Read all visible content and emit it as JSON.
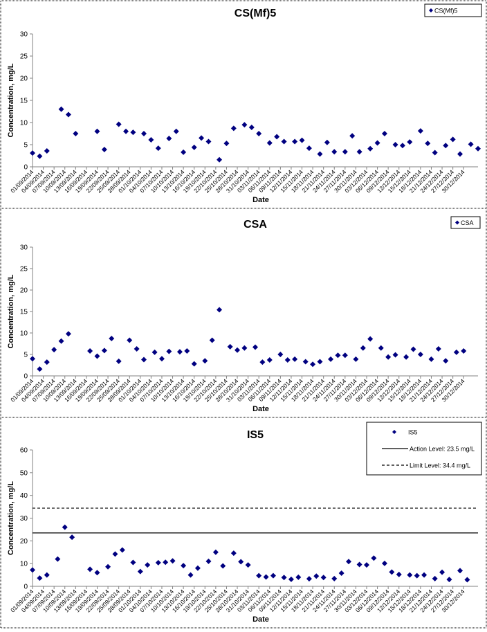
{
  "chart_data": [
    {
      "type": "scatter",
      "title": "CS(Mf)5",
      "xlabel": "Date",
      "ylabel": "Concentration, mg/L",
      "ylim": [
        0,
        30
      ],
      "yticks": [
        "0",
        "5",
        "10",
        "15",
        "20",
        "25",
        "30"
      ],
      "x_tick_labels": [
        "01/09/2014",
        "04/09/2014",
        "07/09/2014",
        "10/09/2014",
        "13/09/2014",
        "16/09/2014",
        "19/09/2014",
        "22/09/2014",
        "25/09/2014",
        "28/09/2014",
        "01/10/2014",
        "04/10/2014",
        "07/10/2014",
        "10/10/2014",
        "13/10/2014",
        "16/10/2014",
        "19/10/2014",
        "22/10/2014",
        "25/10/2014",
        "28/10/2014",
        "31/10/2014",
        "03/11/2014",
        "06/11/2014",
        "09/11/2014",
        "12/11/2014",
        "15/11/2014",
        "18/11/2014",
        "21/11/2014",
        "24/11/2014",
        "27/11/2014",
        "30/11/2014",
        "03/12/2014",
        "06/12/2014",
        "09/12/2014",
        "12/12/2014",
        "15/12/2014",
        "18/12/2014",
        "21/12/2014",
        "24/12/2014",
        "27/12/2014",
        "30/12/2014"
      ],
      "grid": false,
      "legend_position": "top-right",
      "series": [
        {
          "name": "CS(Mf)5",
          "color": "#000080",
          "marker": "diamond",
          "points": [
            {
              "x": "01/09/2014",
              "y": 3.1
            },
            {
              "x": "03/09/2014",
              "y": 2.4
            },
            {
              "x": "05/09/2014",
              "y": 3.6
            },
            {
              "x": "09/09/2014",
              "y": 13.0
            },
            {
              "x": "11/09/2014",
              "y": 11.8
            },
            {
              "x": "13/09/2014",
              "y": 7.5
            },
            {
              "x": "19/09/2014",
              "y": 8.0
            },
            {
              "x": "21/09/2014",
              "y": 3.9
            },
            {
              "x": "25/09/2014",
              "y": 9.6
            },
            {
              "x": "27/09/2014",
              "y": 8.0
            },
            {
              "x": "29/09/2014",
              "y": 7.8
            },
            {
              "x": "02/10/2014",
              "y": 7.5
            },
            {
              "x": "04/10/2014",
              "y": 6.1
            },
            {
              "x": "06/10/2014",
              "y": 4.2
            },
            {
              "x": "09/10/2014",
              "y": 6.4
            },
            {
              "x": "11/10/2014",
              "y": 8.0
            },
            {
              "x": "13/10/2014",
              "y": 3.3
            },
            {
              "x": "16/10/2014",
              "y": 4.4
            },
            {
              "x": "18/10/2014",
              "y": 6.5
            },
            {
              "x": "20/10/2014",
              "y": 5.7
            },
            {
              "x": "23/10/2014",
              "y": 1.6
            },
            {
              "x": "25/10/2014",
              "y": 5.3
            },
            {
              "x": "27/10/2014",
              "y": 8.7
            },
            {
              "x": "30/10/2014",
              "y": 9.5
            },
            {
              "x": "01/11/2014",
              "y": 8.9
            },
            {
              "x": "03/11/2014",
              "y": 7.5
            },
            {
              "x": "06/11/2014",
              "y": 5.4
            },
            {
              "x": "08/11/2014",
              "y": 6.8
            },
            {
              "x": "10/11/2014",
              "y": 5.7
            },
            {
              "x": "13/11/2014",
              "y": 5.7
            },
            {
              "x": "15/11/2014",
              "y": 6.0
            },
            {
              "x": "17/11/2014",
              "y": 4.2
            },
            {
              "x": "20/11/2014",
              "y": 2.9
            },
            {
              "x": "22/11/2014",
              "y": 5.5
            },
            {
              "x": "24/11/2014",
              "y": 3.4
            },
            {
              "x": "27/11/2014",
              "y": 3.4
            },
            {
              "x": "29/11/2014",
              "y": 7.0
            },
            {
              "x": "01/12/2014",
              "y": 3.4
            },
            {
              "x": "04/12/2014",
              "y": 4.1
            },
            {
              "x": "06/12/2014",
              "y": 5.4
            },
            {
              "x": "08/12/2014",
              "y": 7.5
            },
            {
              "x": "11/12/2014",
              "y": 5.0
            },
            {
              "x": "13/12/2014",
              "y": 4.8
            },
            {
              "x": "15/12/2014",
              "y": 5.6
            },
            {
              "x": "18/12/2014",
              "y": 8.1
            },
            {
              "x": "20/12/2014",
              "y": 5.3
            },
            {
              "x": "22/12/2014",
              "y": 3.2
            },
            {
              "x": "25/12/2014",
              "y": 4.8
            },
            {
              "x": "27/12/2014",
              "y": 6.2
            },
            {
              "x": "29/12/2014",
              "y": 2.9
            },
            {
              "x": "01/01/2015",
              "y": 5.1
            },
            {
              "x": "03/01/2015",
              "y": 4.1
            }
          ]
        }
      ]
    },
    {
      "type": "scatter",
      "title": "CSA",
      "xlabel": "Date",
      "ylabel": "Concentration, mg/L",
      "ylim": [
        0,
        30
      ],
      "yticks": [
        "0",
        "5",
        "10",
        "15",
        "20",
        "25",
        "30"
      ],
      "x_tick_labels": [
        "01/09/2014",
        "04/09/2014",
        "07/09/2014",
        "10/09/2014",
        "13/09/2014",
        "16/09/2014",
        "19/09/2014",
        "22/09/2014",
        "25/09/2014",
        "28/09/2014",
        "01/10/2014",
        "04/10/2014",
        "07/10/2014",
        "10/10/2014",
        "13/10/2014",
        "16/10/2014",
        "19/10/2014",
        "22/10/2014",
        "25/10/2014",
        "28/10/2014",
        "31/10/2014",
        "03/11/2014",
        "06/11/2014",
        "09/11/2014",
        "12/11/2014",
        "15/11/2014",
        "18/11/2014",
        "21/11/2014",
        "24/11/2014",
        "27/11/2014",
        "30/11/2014",
        "03/12/2014",
        "06/12/2014",
        "09/12/2014",
        "12/12/2014",
        "15/12/2014",
        "18/12/2014",
        "21/12/2014",
        "24/12/2014",
        "27/12/2014",
        "30/12/2014"
      ],
      "grid": false,
      "legend_position": "top-right",
      "series": [
        {
          "name": "CSA",
          "color": "#000080",
          "marker": "diamond",
          "points": [
            {
              "x": "01/09/2014",
              "y": 4.0
            },
            {
              "x": "03/09/2014",
              "y": 1.6
            },
            {
              "x": "05/09/2014",
              "y": 3.2
            },
            {
              "x": "07/09/2014",
              "y": 6.1
            },
            {
              "x": "09/09/2014",
              "y": 8.1
            },
            {
              "x": "11/09/2014",
              "y": 9.8
            },
            {
              "x": "17/09/2014",
              "y": 5.8
            },
            {
              "x": "19/09/2014",
              "y": 4.6
            },
            {
              "x": "21/09/2014",
              "y": 5.9
            },
            {
              "x": "23/09/2014",
              "y": 8.7
            },
            {
              "x": "25/09/2014",
              "y": 3.4
            },
            {
              "x": "28/09/2014",
              "y": 8.3
            },
            {
              "x": "30/09/2014",
              "y": 6.3
            },
            {
              "x": "02/10/2014",
              "y": 3.8
            },
            {
              "x": "05/10/2014",
              "y": 5.5
            },
            {
              "x": "07/10/2014",
              "y": 4.0
            },
            {
              "x": "09/10/2014",
              "y": 5.7
            },
            {
              "x": "12/10/2014",
              "y": 5.6
            },
            {
              "x": "14/10/2014",
              "y": 5.8
            },
            {
              "x": "16/10/2014",
              "y": 2.8
            },
            {
              "x": "19/10/2014",
              "y": 3.5
            },
            {
              "x": "21/10/2014",
              "y": 8.3
            },
            {
              "x": "23/10/2014",
              "y": 15.4
            },
            {
              "x": "26/10/2014",
              "y": 6.8
            },
            {
              "x": "28/10/2014",
              "y": 6.0
            },
            {
              "x": "30/10/2014",
              "y": 6.5
            },
            {
              "x": "02/11/2014",
              "y": 6.7
            },
            {
              "x": "04/11/2014",
              "y": 3.2
            },
            {
              "x": "06/11/2014",
              "y": 3.7
            },
            {
              "x": "09/11/2014",
              "y": 5.0
            },
            {
              "x": "11/11/2014",
              "y": 3.7
            },
            {
              "x": "13/11/2014",
              "y": 3.9
            },
            {
              "x": "16/11/2014",
              "y": 3.3
            },
            {
              "x": "18/11/2014",
              "y": 2.7
            },
            {
              "x": "20/11/2014",
              "y": 3.3
            },
            {
              "x": "23/11/2014",
              "y": 3.9
            },
            {
              "x": "25/11/2014",
              "y": 4.8
            },
            {
              "x": "27/11/2014",
              "y": 4.8
            },
            {
              "x": "30/11/2014",
              "y": 3.9
            },
            {
              "x": "02/12/2014",
              "y": 6.5
            },
            {
              "x": "04/12/2014",
              "y": 8.6
            },
            {
              "x": "07/12/2014",
              "y": 6.5
            },
            {
              "x": "09/12/2014",
              "y": 4.4
            },
            {
              "x": "11/12/2014",
              "y": 4.9
            },
            {
              "x": "14/12/2014",
              "y": 4.4
            },
            {
              "x": "16/12/2014",
              "y": 6.2
            },
            {
              "x": "18/12/2014",
              "y": 5.0
            },
            {
              "x": "21/12/2014",
              "y": 3.9
            },
            {
              "x": "23/12/2014",
              "y": 6.3
            },
            {
              "x": "25/12/2014",
              "y": 3.5
            },
            {
              "x": "28/12/2014",
              "y": 5.5
            },
            {
              "x": "30/12/2014",
              "y": 5.8
            }
          ]
        }
      ]
    },
    {
      "type": "scatter",
      "title": "IS5",
      "xlabel": "Date",
      "ylabel": "Concentration, mg/L",
      "ylim": [
        0,
        60
      ],
      "yticks": [
        "0",
        "10",
        "20",
        "30",
        "40",
        "50",
        "60"
      ],
      "x_tick_labels": [
        "01/09/2014",
        "04/09/2014",
        "07/09/2014",
        "10/09/2014",
        "13/09/2014",
        "16/09/2014",
        "19/09/2014",
        "22/09/2014",
        "25/09/2014",
        "28/09/2014",
        "01/10/2014",
        "04/10/2014",
        "07/10/2014",
        "10/10/2014",
        "13/10/2014",
        "16/10/2014",
        "19/10/2014",
        "22/10/2014",
        "25/10/2014",
        "28/10/2014",
        "31/10/2014",
        "03/11/2014",
        "06/11/2014",
        "09/11/2014",
        "12/11/2014",
        "15/11/2014",
        "18/11/2014",
        "21/11/2014",
        "24/11/2014",
        "27/11/2014",
        "30/11/2014",
        "03/12/2014",
        "06/12/2014",
        "09/12/2014",
        "12/12/2014",
        "15/12/2014",
        "18/12/2014",
        "21/12/2014",
        "24/12/2014",
        "27/12/2014",
        "30/12/2014"
      ],
      "grid": false,
      "legend_position": "top-right",
      "reference_lines": [
        {
          "name": "Action Level: 23.5 mg/L",
          "y": 23.5,
          "style": "solid"
        },
        {
          "name": "Limit Level: 34.4 mg/L",
          "y": 34.4,
          "style": "dashed"
        }
      ],
      "series": [
        {
          "name": "IS5",
          "color": "#000080",
          "marker": "diamond",
          "points": [
            {
              "x": "01/09/2014",
              "y": 7.2
            },
            {
              "x": "03/09/2014",
              "y": 3.6
            },
            {
              "x": "05/09/2014",
              "y": 5.0
            },
            {
              "x": "08/09/2014",
              "y": 12.0
            },
            {
              "x": "10/09/2014",
              "y": 26.0
            },
            {
              "x": "12/09/2014",
              "y": 21.6
            },
            {
              "x": "17/09/2014",
              "y": 7.5
            },
            {
              "x": "19/09/2014",
              "y": 6.0
            },
            {
              "x": "22/09/2014",
              "y": 8.6
            },
            {
              "x": "24/09/2014",
              "y": 14.2
            },
            {
              "x": "26/09/2014",
              "y": 16.0
            },
            {
              "x": "29/09/2014",
              "y": 10.5
            },
            {
              "x": "01/10/2014",
              "y": 6.5
            },
            {
              "x": "03/10/2014",
              "y": 9.4
            },
            {
              "x": "06/10/2014",
              "y": 10.4
            },
            {
              "x": "08/10/2014",
              "y": 10.6
            },
            {
              "x": "10/10/2014",
              "y": 11.2
            },
            {
              "x": "13/10/2014",
              "y": 9.1
            },
            {
              "x": "15/10/2014",
              "y": 5.0
            },
            {
              "x": "17/10/2014",
              "y": 8.0
            },
            {
              "x": "20/10/2014",
              "y": 11.0
            },
            {
              "x": "22/10/2014",
              "y": 15.0
            },
            {
              "x": "24/10/2014",
              "y": 9.0
            },
            {
              "x": "27/10/2014",
              "y": 14.6
            },
            {
              "x": "29/10/2014",
              "y": 10.8
            },
            {
              "x": "31/10/2014",
              "y": 9.4
            },
            {
              "x": "03/11/2014",
              "y": 4.7
            },
            {
              "x": "05/11/2014",
              "y": 4.1
            },
            {
              "x": "07/11/2014",
              "y": 4.7
            },
            {
              "x": "10/11/2014",
              "y": 3.9
            },
            {
              "x": "12/11/2014",
              "y": 3.1
            },
            {
              "x": "14/11/2014",
              "y": 4.0
            },
            {
              "x": "17/11/2014",
              "y": 3.3
            },
            {
              "x": "19/11/2014",
              "y": 4.5
            },
            {
              "x": "21/11/2014",
              "y": 3.9
            },
            {
              "x": "24/11/2014",
              "y": 3.4
            },
            {
              "x": "26/11/2014",
              "y": 5.8
            },
            {
              "x": "28/11/2014",
              "y": 10.9
            },
            {
              "x": "01/12/2014",
              "y": 9.6
            },
            {
              "x": "03/12/2014",
              "y": 9.4
            },
            {
              "x": "05/12/2014",
              "y": 12.4
            },
            {
              "x": "08/12/2014",
              "y": 10.1
            },
            {
              "x": "10/12/2014",
              "y": 6.3
            },
            {
              "x": "12/12/2014",
              "y": 5.2
            },
            {
              "x": "15/12/2014",
              "y": 5.0
            },
            {
              "x": "17/12/2014",
              "y": 4.7
            },
            {
              "x": "19/12/2014",
              "y": 5.0
            },
            {
              "x": "22/12/2014",
              "y": 3.4
            },
            {
              "x": "24/12/2014",
              "y": 6.2
            },
            {
              "x": "26/12/2014",
              "y": 3.0
            },
            {
              "x": "29/12/2014",
              "y": 6.9
            },
            {
              "x": "31/12/2014",
              "y": 2.9
            }
          ]
        }
      ]
    }
  ]
}
